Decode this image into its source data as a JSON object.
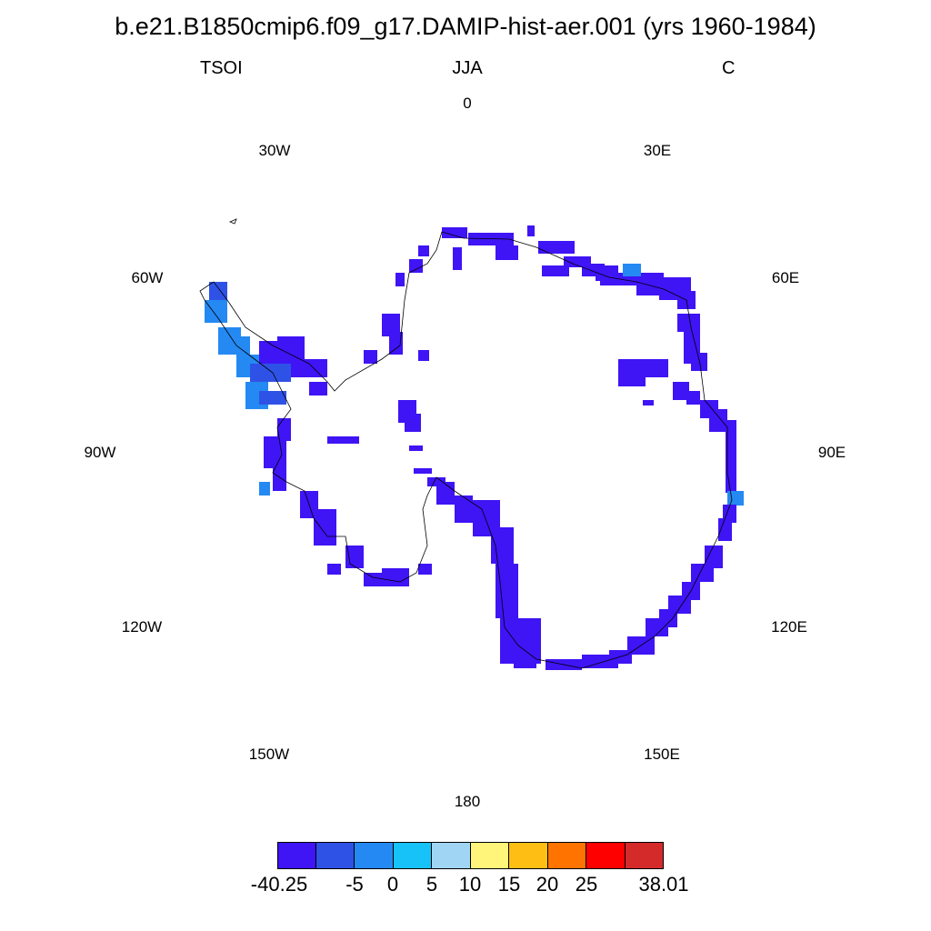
{
  "title": "b.e21.B1850cmip6.f09_g17.DAMIP-hist-aer.001 (yrs 1960-1984)",
  "subtitle": {
    "left": "TSOI",
    "center": "JJA",
    "right": "C"
  },
  "longitude_labels": [
    "0",
    "30E",
    "60E",
    "90E",
    "120E",
    "150E",
    "180",
    "150W",
    "120W",
    "90W",
    "60W",
    "30W"
  ],
  "colorbar": {
    "colors": [
      "#3f14f5",
      "#2f52e6",
      "#2489f2",
      "#16c2f7",
      "#a0d6f3",
      "#fff57a",
      "#ffbe14",
      "#ff7400",
      "#ff0000",
      "#d42a2a"
    ],
    "labels": [
      "-40.25",
      "-5",
      "0",
      "5",
      "10",
      "15",
      "20",
      "25",
      "38.01"
    ]
  },
  "colors": {
    "dominant": "#3f14f5",
    "secondary": "#2489f2",
    "coastline": "#000000"
  }
}
